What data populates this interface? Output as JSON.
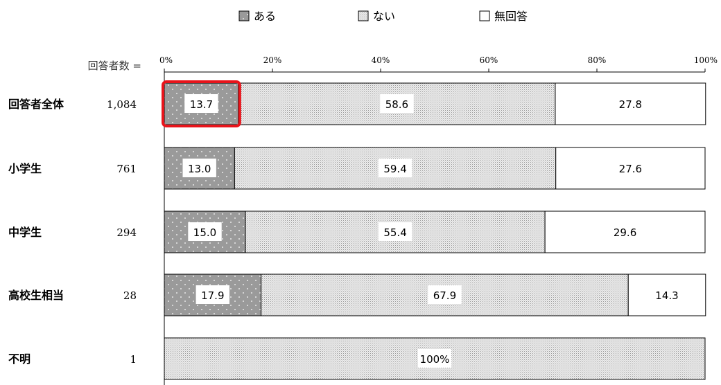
{
  "chart_data": {
    "type": "bar",
    "orientation": "horizontal",
    "stacked": true,
    "percent_stacked": true,
    "legend_position": "top",
    "n_header": "回答者数 =",
    "categories": [
      "回答者全体",
      "小学生",
      "中学生",
      "高校生相当",
      "不明"
    ],
    "counts": [
      "1,084",
      "761",
      "294",
      "28",
      "1"
    ],
    "series": [
      {
        "name": "ある",
        "values": [
          13.7,
          13.0,
          15.0,
          17.9,
          0
        ],
        "labels": [
          "13.7",
          "13.0",
          "15.0",
          "17.9",
          ""
        ]
      },
      {
        "name": "ない",
        "values": [
          58.6,
          59.4,
          55.4,
          67.9,
          100
        ],
        "labels": [
          "58.6",
          "59.4",
          "55.4",
          "67.9",
          "100%"
        ]
      },
      {
        "name": "無回答",
        "values": [
          27.8,
          27.6,
          29.6,
          14.3,
          0
        ],
        "labels": [
          "27.8",
          "27.6",
          "29.6",
          "14.3",
          ""
        ]
      }
    ],
    "xlim": [
      0,
      100
    ],
    "x_ticks": [
      0,
      20,
      40,
      60,
      80,
      100
    ],
    "x_tick_labels": [
      "0%",
      "20%",
      "40%",
      "60%",
      "80%",
      "100%"
    ],
    "highlight": {
      "category_index": 0,
      "series_index": 0,
      "color": "#e8141b"
    },
    "colors": {
      "ある": "#9a9a9a",
      "ない": "#d6d6d6",
      "無回答": "#ffffff"
    }
  }
}
